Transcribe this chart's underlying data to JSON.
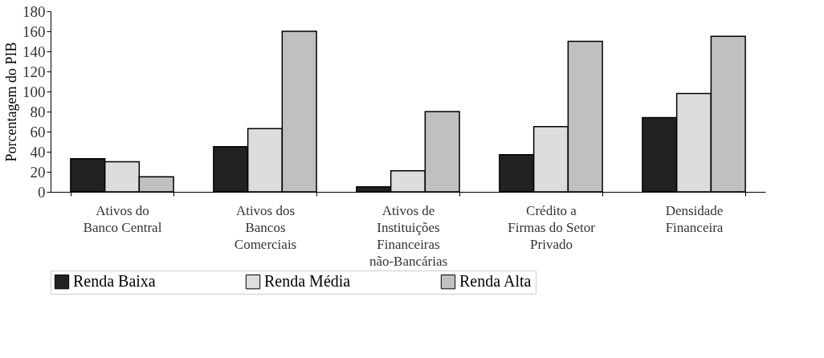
{
  "chart_data": {
    "type": "bar",
    "ylabel": "Porcentagem do PIB",
    "categories": [
      "Ativos do\nBanco Central",
      "Ativos dos\nBancos\nComerciais",
      "Ativos de\nInstituições\nFinanceiras\nnão-Bancárias",
      "Crédito a\nFirmas do Setor\nPrivado",
      "Densidade\nFinanceira"
    ],
    "series": [
      {
        "name": "Renda Baixa",
        "color": "#222222",
        "values": [
          33,
          45,
          5,
          37,
          74
        ]
      },
      {
        "name": "Renda Média",
        "color": "#dddddd",
        "values": [
          30,
          63,
          21,
          65,
          98
        ]
      },
      {
        "name": "Renda Alta",
        "color": "#c0c0c0",
        "values": [
          15,
          160,
          80,
          150,
          155
        ]
      }
    ],
    "ylim": [
      0,
      180
    ],
    "yticks": [
      0,
      20,
      40,
      60,
      80,
      100,
      120,
      140,
      160,
      180
    ],
    "grid": false,
    "legend": "bottom"
  }
}
